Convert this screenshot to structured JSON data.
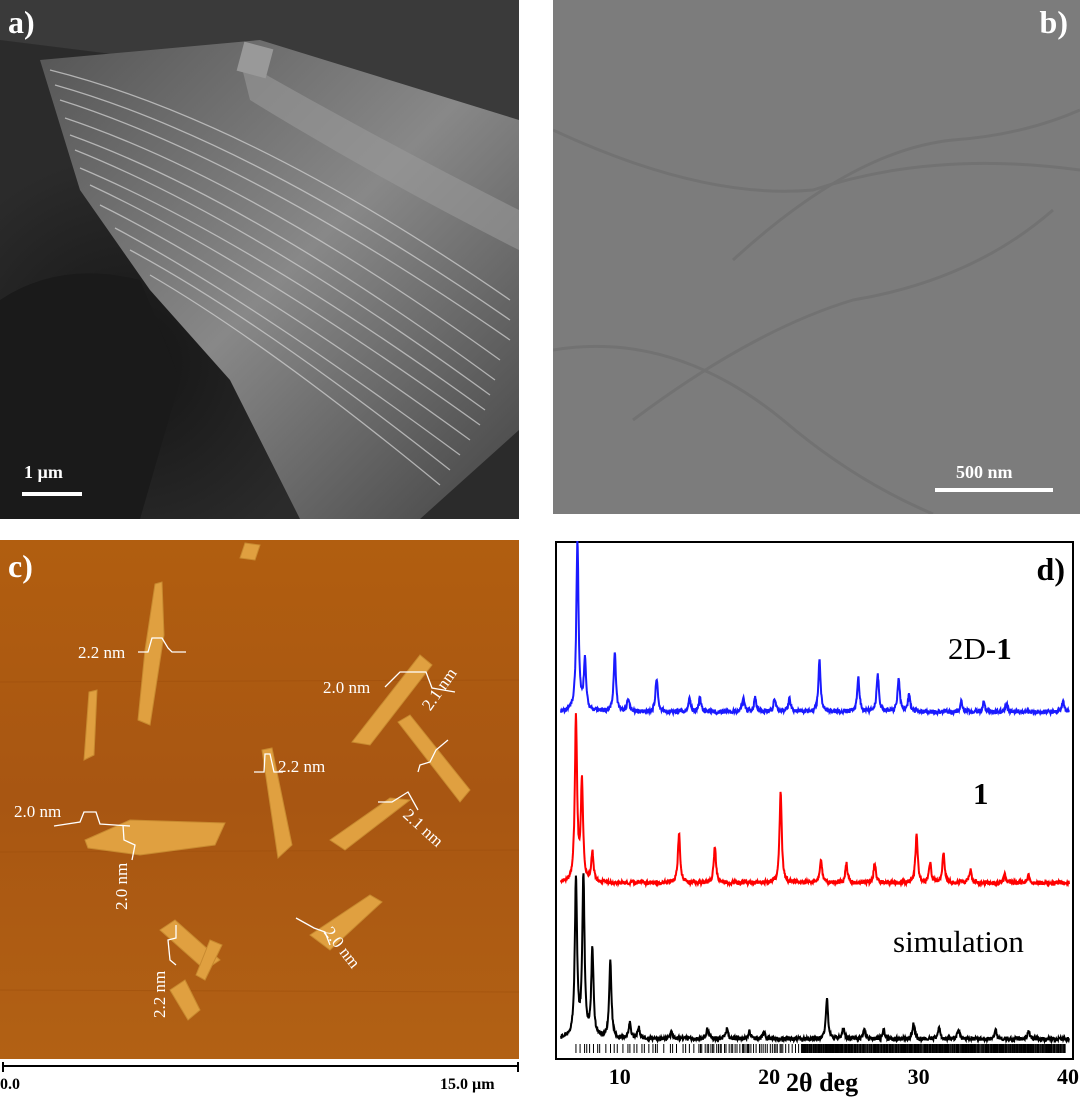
{
  "panels": {
    "a": {
      "label": "a)",
      "scale": "1 µm"
    },
    "b": {
      "label": "b)",
      "scale": "500 nm"
    },
    "c": {
      "label": "c)",
      "heights": [
        "2.2 nm",
        "2.0 nm",
        "2.1 nm",
        "2.0 nm",
        "2.2 nm",
        "2.1 nm",
        "2.0 nm",
        "2.0 nm",
        "2.2 nm"
      ],
      "scale_start": "0.0",
      "scale_end": "15.0 µm"
    },
    "d": {
      "label": "d)"
    }
  },
  "chart_data": {
    "type": "line",
    "xlabel": "2θ deg",
    "xlim": [
      6,
      40
    ],
    "xticks": [
      "10",
      "20",
      "30",
      "40"
    ],
    "colors": {
      "2D-1": "#1a1aff",
      "1": "#ff0000",
      "simulation": "#000000"
    },
    "series": [
      {
        "name": "2D-1",
        "label_text": "2D-",
        "label_bold": "1",
        "peaks": [
          [
            7.1,
            1.0
          ],
          [
            7.6,
            0.3
          ],
          [
            9.6,
            0.35
          ],
          [
            10.5,
            0.08
          ],
          [
            12.4,
            0.2
          ],
          [
            14.6,
            0.08
          ],
          [
            15.3,
            0.08
          ],
          [
            18.2,
            0.08
          ],
          [
            19.0,
            0.08
          ],
          [
            20.3,
            0.08
          ],
          [
            21.3,
            0.08
          ],
          [
            23.3,
            0.3
          ],
          [
            25.9,
            0.2
          ],
          [
            27.2,
            0.22
          ],
          [
            28.6,
            0.2
          ],
          [
            29.3,
            0.1
          ],
          [
            32.8,
            0.06
          ],
          [
            34.3,
            0.06
          ],
          [
            35.8,
            0.05
          ],
          [
            39.6,
            0.06
          ]
        ]
      },
      {
        "name": "1",
        "label_text": "",
        "label_bold": "1",
        "peaks": [
          [
            7.0,
            1.0
          ],
          [
            7.4,
            0.6
          ],
          [
            8.1,
            0.18
          ],
          [
            13.9,
            0.3
          ],
          [
            16.3,
            0.22
          ],
          [
            20.7,
            0.55
          ],
          [
            23.4,
            0.15
          ],
          [
            25.1,
            0.12
          ],
          [
            27.0,
            0.12
          ],
          [
            29.8,
            0.3
          ],
          [
            30.7,
            0.12
          ],
          [
            31.6,
            0.18
          ],
          [
            33.4,
            0.08
          ],
          [
            35.7,
            0.05
          ],
          [
            37.3,
            0.05
          ]
        ]
      },
      {
        "name": "simulation",
        "label_text": "simulation",
        "label_bold": "",
        "peaks": [
          [
            7.0,
            1.0
          ],
          [
            7.5,
            1.0
          ],
          [
            8.1,
            0.55
          ],
          [
            9.3,
            0.48
          ],
          [
            10.6,
            0.1
          ],
          [
            11.2,
            0.07
          ],
          [
            13.4,
            0.05
          ],
          [
            15.8,
            0.07
          ],
          [
            17.1,
            0.06
          ],
          [
            18.6,
            0.05
          ],
          [
            19.6,
            0.05
          ],
          [
            23.8,
            0.25
          ],
          [
            24.9,
            0.07
          ],
          [
            26.3,
            0.06
          ],
          [
            27.6,
            0.06
          ],
          [
            29.6,
            0.1
          ],
          [
            31.3,
            0.08
          ],
          [
            32.6,
            0.06
          ],
          [
            35.1,
            0.05
          ],
          [
            37.3,
            0.05
          ]
        ]
      }
    ]
  }
}
